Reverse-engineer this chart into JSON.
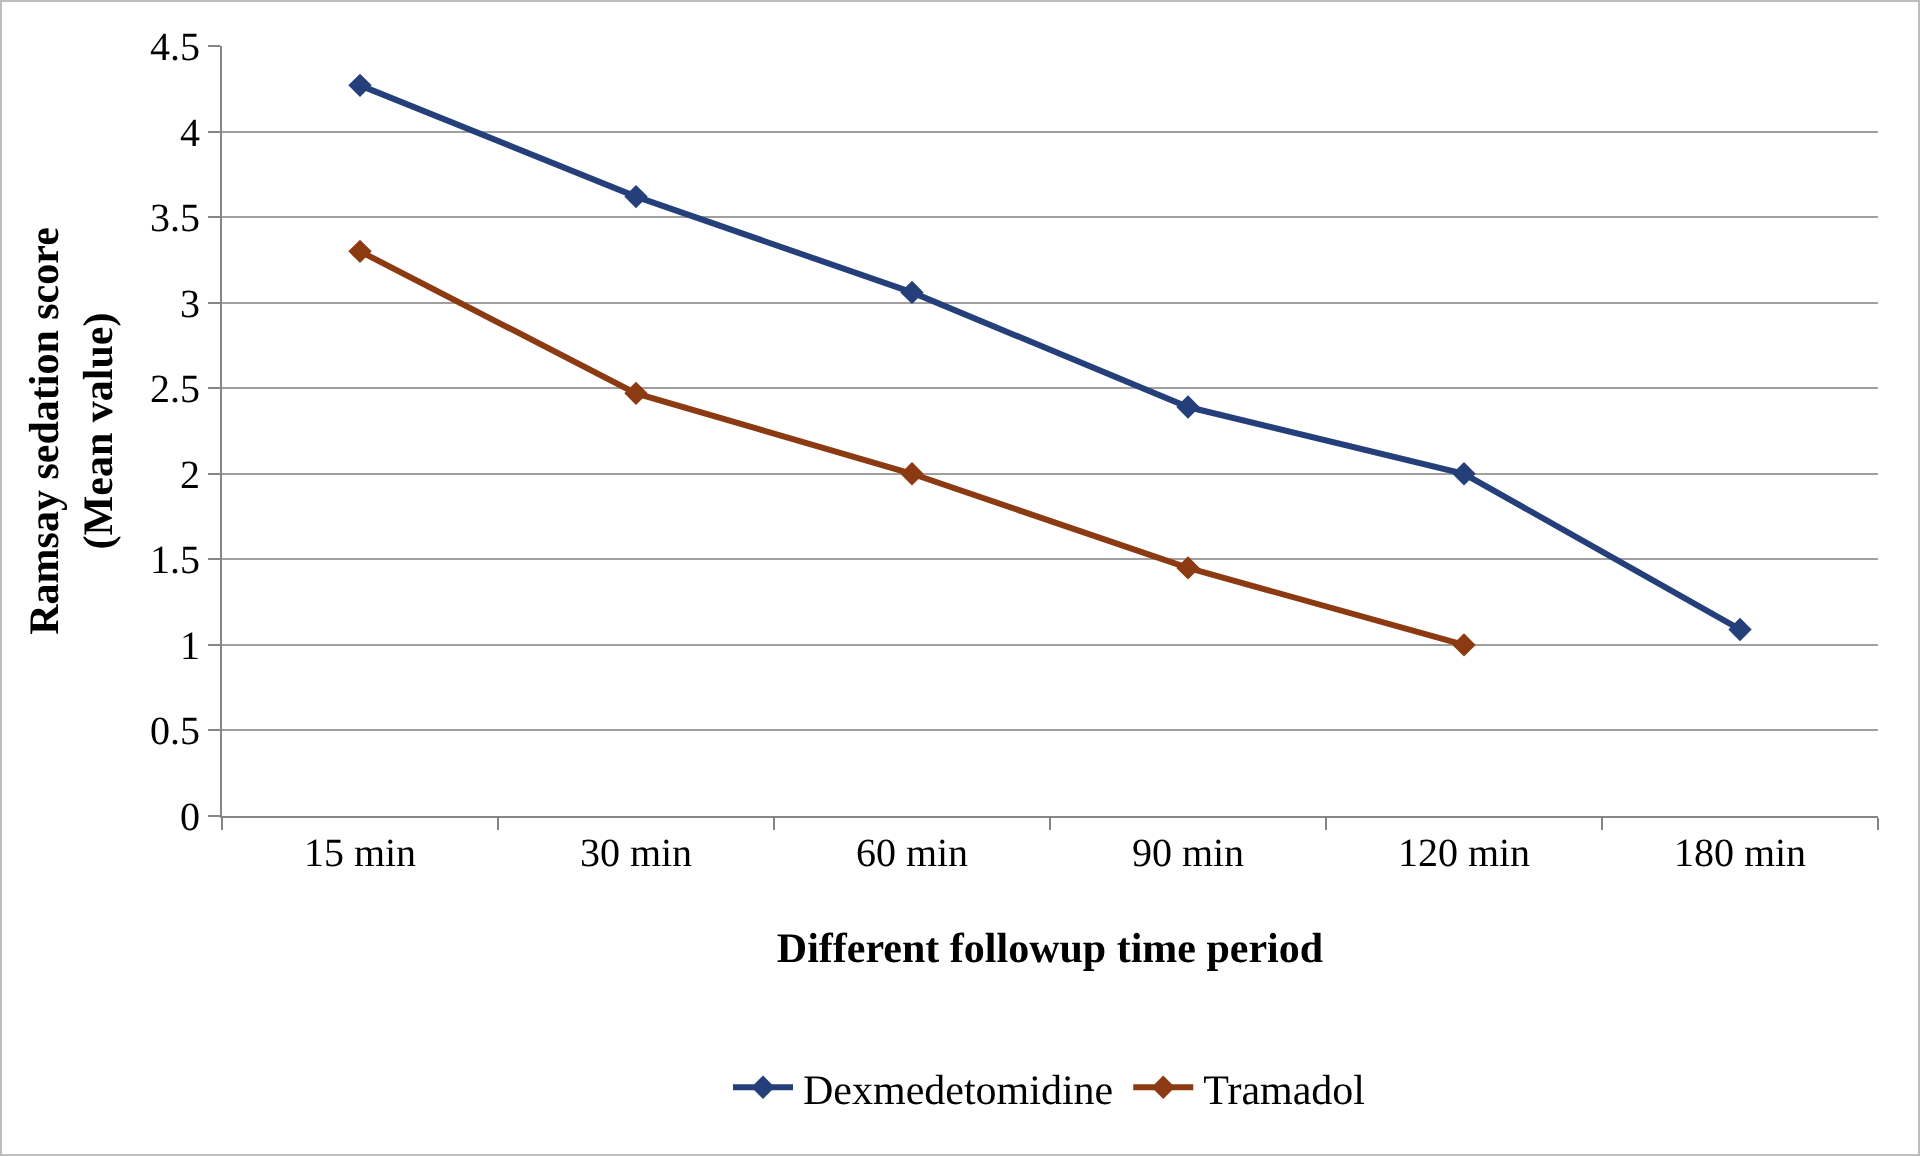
{
  "chart_data": {
    "type": "line",
    "xlabel": "Different followup time period",
    "ylabel": "Ramsay sedation score\n(Mean value)",
    "categories": [
      "15 min",
      "30 min",
      "60 min",
      "90 min",
      "120 min",
      "180 min"
    ],
    "series": [
      {
        "name": "Dexmedetomidine",
        "color": "#243f7a",
        "values": [
          4.27,
          3.62,
          3.06,
          2.39,
          2.0,
          1.09
        ]
      },
      {
        "name": "Tramadol",
        "color": "#8b3a12",
        "values": [
          3.3,
          2.47,
          2.0,
          1.45,
          1.0,
          null
        ]
      }
    ],
    "ylim": [
      0,
      4.5
    ],
    "yticks": [
      0,
      0.5,
      1,
      1.5,
      2,
      2.5,
      3,
      3.5,
      4,
      4.5
    ],
    "grid": "y",
    "legend": "bottom",
    "marker": "diamond",
    "line_style": "solid"
  }
}
